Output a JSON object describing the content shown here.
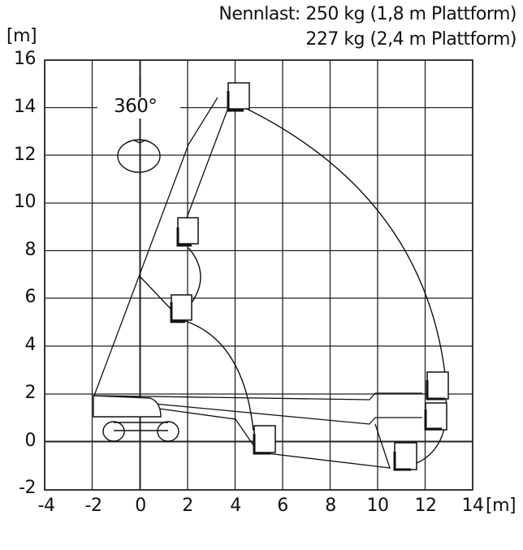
{
  "header": {
    "load_line1": "Nennlast: 250 kg (1,8 m Plattform)",
    "load_line2": "227 kg (2,4 m Plattform)"
  },
  "axes": {
    "y_unit": "[m]",
    "x_unit": "[m]",
    "y_ticks": [
      "16",
      "14",
      "12",
      "10",
      "8",
      "6",
      "4",
      "2",
      "0",
      "-2"
    ],
    "x_ticks": [
      "-4",
      "-2",
      "0",
      "2",
      "4",
      "6",
      "8",
      "10",
      "12",
      "14"
    ]
  },
  "rotation_label": "360°"
}
